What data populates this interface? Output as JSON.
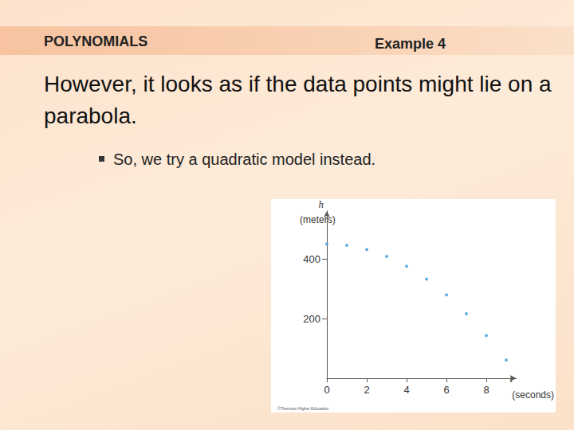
{
  "slide": {
    "section": "POLYNOMIALS",
    "example": "Example 4",
    "heading": "However, it looks as if the data points might lie on a parabola.",
    "bullet": "So, we try a quadratic model instead."
  },
  "chart_data": {
    "type": "scatter",
    "ylabel": "h",
    "yunits": "(meters)",
    "xlabel": "t",
    "xunits": "(seconds)",
    "annotation": "©Thomson Higher Education",
    "x": [
      0,
      1,
      2,
      3,
      4,
      5,
      6,
      7,
      8,
      9
    ],
    "values": [
      450,
      445,
      431,
      408,
      375,
      332,
      279,
      216,
      143,
      61
    ],
    "color": "#3a9ad9",
    "marker": "circle",
    "xlim": [
      0,
      9.5
    ],
    "xticks": [
      0,
      2,
      4,
      6,
      8
    ],
    "ylim": [
      0,
      560
    ],
    "yticks": [
      200,
      400
    ],
    "grid": false
  }
}
